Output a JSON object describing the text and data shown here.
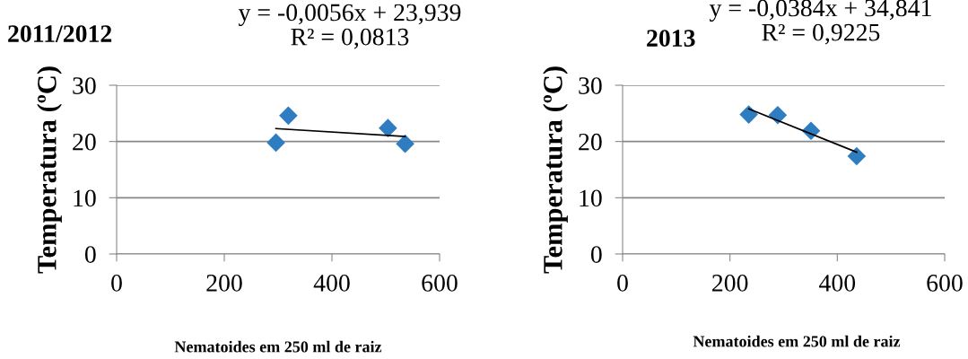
{
  "chart_data": [
    {
      "type": "scatter",
      "title": "2011/2012",
      "xlabel": "Nematoides em 250 ml de raiz",
      "ylabel": "Temperatura (ºC)",
      "annotations": [
        "y = -0,0056x + 23,939",
        "R² = 0,0813"
      ],
      "xlim": [
        0,
        600
      ],
      "xticks": [
        0,
        200,
        400,
        600
      ],
      "ylim": [
        0,
        30
      ],
      "yticks": [
        0,
        10,
        20,
        30
      ],
      "grid": "y",
      "legend": false,
      "series": [
        {
          "color": "#2e7dc0",
          "marker": "diamond",
          "x": [
            296,
            319,
            504,
            536
          ],
          "values": [
            19.8,
            24.6,
            22.4,
            19.6
          ]
        },
        {
          "type": "line",
          "color": "#000000",
          "marker": "none",
          "line_style": "solid",
          "x": [
            296,
            536
          ],
          "values": [
            22.3,
            20.9
          ]
        }
      ]
    },
    {
      "type": "scatter",
      "title": "2013",
      "xlabel": "Nematoides em 250 ml de raiz",
      "ylabel": "Temperatura (ºC)",
      "annotations": [
        "y = -0,0384x + 34,841",
        "R² = 0,9225"
      ],
      "xlim": [
        0,
        600
      ],
      "xticks": [
        0,
        200,
        400,
        600
      ],
      "ylim": [
        0,
        30
      ],
      "yticks": [
        0,
        10,
        20,
        30
      ],
      "grid": "y",
      "legend": false,
      "series": [
        {
          "color": "#2e7dc0",
          "marker": "diamond",
          "x": [
            235,
            289,
            351,
            436
          ],
          "values": [
            24.8,
            24.7,
            21.9,
            17.4
          ]
        },
        {
          "type": "line",
          "color": "#000000",
          "marker": "none",
          "line_style": "solid",
          "x": [
            235,
            436
          ],
          "values": [
            25.8,
            18.1
          ]
        }
      ]
    }
  ]
}
